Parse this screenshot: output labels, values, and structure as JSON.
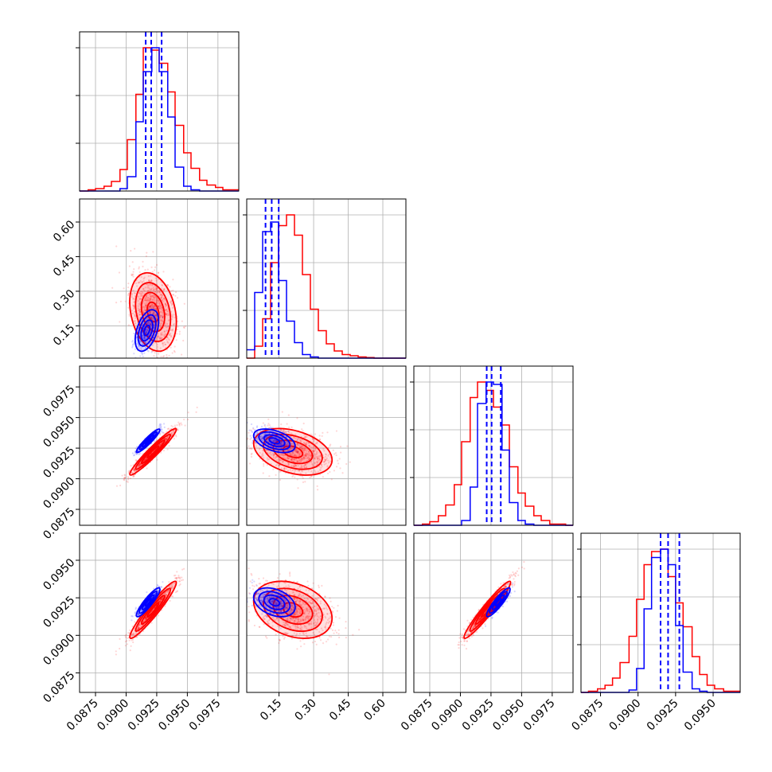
{
  "chart_data": {
    "type": "corner",
    "grid": true,
    "colors": {
      "series_a": "#0000ff",
      "series_b": "#ff0000"
    },
    "parameters": [
      {
        "ticks": [
          "0.0875",
          "0.0900",
          "0.0925",
          "0.0950",
          "0.0975"
        ],
        "range": [
          0.0862,
          0.0992
        ]
      },
      {
        "ticks": [
          "0.15",
          "0.30",
          "0.45",
          "0.60"
        ],
        "range": [
          0.01,
          0.7
        ]
      },
      {
        "ticks": [
          "0.0875",
          "0.0900",
          "0.0925",
          "0.0950",
          "0.0975"
        ],
        "range": [
          0.0862,
          0.0992
        ]
      },
      {
        "ticks": [
          "0.0875",
          "0.0900",
          "0.0925",
          "0.0950"
        ],
        "range": [
          0.0862,
          0.0968
        ]
      }
    ],
    "marginals": [
      {
        "bins": [
          0.0862,
          0.0869,
          0.0875,
          0.0882,
          0.0888,
          0.0895,
          0.0901,
          0.0908,
          0.0914,
          0.0921,
          0.0927,
          0.0934,
          0.094,
          0.0947,
          0.0953,
          0.096,
          0.0966,
          0.0973,
          0.0979,
          0.0986,
          0.0992
        ],
        "series_a": [
          0,
          0,
          0,
          0,
          0,
          2,
          12,
          58,
          100,
          120,
          100,
          62,
          20,
          4,
          1,
          0,
          0,
          0,
          0,
          0
        ],
        "series_b": [
          0,
          1,
          2,
          4,
          8,
          18,
          43,
          81,
          120,
          118,
          107,
          83,
          55,
          32,
          19,
          9,
          5,
          3,
          1,
          1
        ],
        "quantile_lines": [
          0.0916,
          0.09205,
          0.0929
        ]
      },
      {
        "bins": [
          0.01,
          0.0445,
          0.079,
          0.1135,
          0.148,
          0.1825,
          0.217,
          0.2515,
          0.286,
          0.3205,
          0.355,
          0.3895,
          0.424,
          0.4585,
          0.493,
          0.5275,
          0.562,
          0.5965,
          0.631,
          0.6655,
          0.7
        ],
        "series_a": [
          7,
          55,
          106,
          114,
          65,
          31,
          13,
          3,
          1,
          0,
          0,
          0,
          0,
          0,
          0,
          0,
          0,
          0,
          0,
          0
        ],
        "series_b": [
          0,
          10,
          33,
          80,
          111,
          120,
          103,
          70,
          41,
          23,
          12,
          6,
          3,
          2,
          1,
          0.5,
          0,
          0,
          0,
          0
        ],
        "quantile_lines": [
          0.0915,
          0.1183,
          0.1487
        ]
      },
      {
        "bins": [
          0.0862,
          0.0869,
          0.0875,
          0.0882,
          0.0888,
          0.0895,
          0.0901,
          0.0908,
          0.0914,
          0.0921,
          0.0927,
          0.0934,
          0.094,
          0.0947,
          0.0953,
          0.096,
          0.0966,
          0.0973,
          0.0979,
          0.0986,
          0.0992
        ],
        "series_a": [
          0,
          0,
          0,
          0,
          0,
          0,
          4,
          32,
          102,
          120,
          118,
          63,
          19,
          4,
          1,
          0,
          0,
          0,
          0,
          0
        ],
        "series_b": [
          0,
          1,
          3,
          8,
          17,
          34,
          70,
          107,
          120,
          113,
          99,
          84,
          49,
          27,
          16,
          8,
          4,
          1,
          1,
          0
        ],
        "quantile_lines": [
          0.09215,
          0.09255,
          0.0933
        ]
      },
      {
        "bins": [
          0.0862,
          0.0867,
          0.0873,
          0.0878,
          0.0883,
          0.0888,
          0.0894,
          0.0899,
          0.0904,
          0.0909,
          0.0915,
          0.092,
          0.0925,
          0.093,
          0.0936,
          0.0941,
          0.0946,
          0.0951,
          0.0957,
          0.0962,
          0.0968
        ],
        "series_a": [
          0,
          0,
          0,
          0,
          0,
          0,
          2,
          20,
          70,
          113,
          120,
          107,
          56,
          17,
          3,
          1,
          0,
          0,
          0,
          0
        ],
        "series_b": [
          0,
          1,
          3,
          6,
          12,
          25,
          47,
          78,
          107,
          118,
          120,
          97,
          75,
          55,
          30,
          15,
          6,
          3,
          1,
          1
        ],
        "quantile_lines": [
          0.0915,
          0.092,
          0.09275
        ]
      }
    ],
    "joints": [
      {
        "x": 0,
        "y": 1,
        "mean_a": [
          0.0917,
          0.13
        ],
        "mean_b": [
          0.0922,
          0.21
        ],
        "sd_a": [
          0.00048,
          0.045
        ],
        "sd_b": [
          0.00095,
          0.085
        ],
        "corr_a": 0.45,
        "corr_b": -0.25
      },
      {
        "x": 0,
        "y": 2,
        "mean_a": [
          0.0918,
          0.0931
        ],
        "mean_b": [
          0.0922,
          0.0922
        ],
        "sd_a": [
          0.00048,
          0.00048
        ],
        "sd_b": [
          0.00095,
          0.00095
        ],
        "corr_a": 0.93,
        "corr_b": 0.96
      },
      {
        "x": 1,
        "y": 2,
        "mean_a": [
          0.13,
          0.0931
        ],
        "mean_b": [
          0.21,
          0.0922
        ],
        "sd_a": [
          0.045,
          0.00048
        ],
        "sd_b": [
          0.085,
          0.00095
        ],
        "corr_a": -0.45,
        "corr_b": -0.35
      },
      {
        "x": 0,
        "y": 3,
        "mean_a": [
          0.0918,
          0.0922
        ],
        "mean_b": [
          0.0922,
          0.0917
        ],
        "sd_a": [
          0.00048,
          0.00048
        ],
        "sd_b": [
          0.00095,
          0.00095
        ],
        "corr_a": 0.9,
        "corr_b": 0.95
      },
      {
        "x": 1,
        "y": 3,
        "mean_a": [
          0.13,
          0.0922
        ],
        "mean_b": [
          0.21,
          0.0917
        ],
        "sd_a": [
          0.045,
          0.00048
        ],
        "sd_b": [
          0.085,
          0.00095
        ],
        "corr_a": -0.35,
        "corr_b": -0.3
      },
      {
        "x": 2,
        "y": 3,
        "mean_a": [
          0.0931,
          0.0922
        ],
        "mean_b": [
          0.0922,
          0.0917
        ],
        "sd_a": [
          0.00048,
          0.00048
        ],
        "sd_b": [
          0.00095,
          0.00095
        ],
        "corr_a": 0.9,
        "corr_b": 0.96
      }
    ]
  }
}
